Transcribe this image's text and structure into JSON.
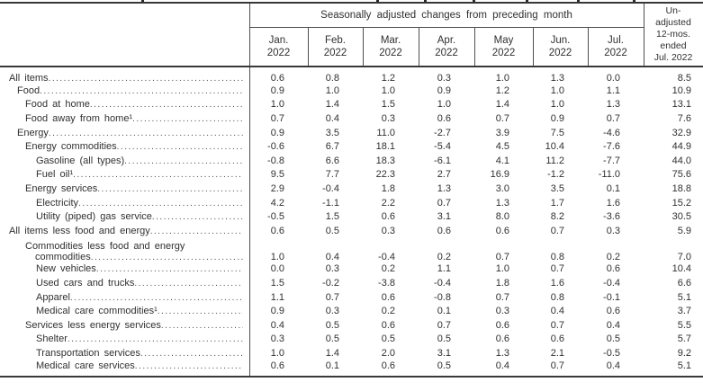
{
  "table": {
    "header": {
      "group_title": "Seasonally adjusted changes from preceding month",
      "months": [
        {
          "abbr": "Jan.",
          "year": "2022"
        },
        {
          "abbr": "Feb.",
          "year": "2022"
        },
        {
          "abbr": "Mar.",
          "year": "2022"
        },
        {
          "abbr": "Apr.",
          "year": "2022"
        },
        {
          "abbr": "May",
          "year": "2022"
        },
        {
          "abbr": "Jun.",
          "year": "2022"
        },
        {
          "abbr": "Jul.",
          "year": "2022"
        }
      ],
      "unadjusted_lines": [
        "Un-",
        "adjusted",
        "12-mos.",
        "ended",
        "Jul. 2022"
      ]
    },
    "rows": [
      {
        "label": "All items",
        "indent": 0,
        "values": [
          "0.6",
          "0.8",
          "1.2",
          "0.3",
          "1.0",
          "1.3",
          "0.0",
          "8.5"
        ]
      },
      {
        "label": "Food",
        "indent": 1,
        "values": [
          "0.9",
          "1.0",
          "1.0",
          "0.9",
          "1.2",
          "1.0",
          "1.1",
          "10.9"
        ]
      },
      {
        "label": "Food at home",
        "indent": 2,
        "values": [
          "1.0",
          "1.4",
          "1.5",
          "1.0",
          "1.4",
          "1.0",
          "1.3",
          "13.1"
        ]
      },
      {
        "label": "Food away from home¹",
        "indent": 2,
        "values": [
          "0.7",
          "0.4",
          "0.3",
          "0.6",
          "0.7",
          "0.9",
          "0.7",
          "7.6"
        ]
      },
      {
        "label": "Energy",
        "indent": 1,
        "values": [
          "0.9",
          "3.5",
          "11.0",
          "-2.7",
          "3.9",
          "7.5",
          "-4.6",
          "32.9"
        ]
      },
      {
        "label": "Energy commodities",
        "indent": 2,
        "values": [
          "-0.6",
          "6.7",
          "18.1",
          "-5.4",
          "4.5",
          "10.4",
          "-7.6",
          "44.9"
        ]
      },
      {
        "label": "Gasoline (all types)",
        "indent": 3,
        "values": [
          "-0.8",
          "6.6",
          "18.3",
          "-6.1",
          "4.1",
          "11.2",
          "-7.7",
          "44.0"
        ]
      },
      {
        "label": "Fuel oil¹",
        "indent": 3,
        "values": [
          "9.5",
          "7.7",
          "22.3",
          "2.7",
          "16.9",
          "-1.2",
          "-11.0",
          "75.6"
        ]
      },
      {
        "label": "Energy services",
        "indent": 2,
        "values": [
          "2.9",
          "-0.4",
          "1.8",
          "1.3",
          "3.0",
          "3.5",
          "0.1",
          "18.8"
        ]
      },
      {
        "label": "Electricity",
        "indent": 3,
        "values": [
          "4.2",
          "-1.1",
          "2.2",
          "0.7",
          "1.3",
          "1.7",
          "1.6",
          "15.2"
        ]
      },
      {
        "label": "Utility (piped) gas service",
        "indent": 3,
        "values": [
          "-0.5",
          "1.5",
          "0.6",
          "3.1",
          "8.0",
          "8.2",
          "-3.6",
          "30.5"
        ]
      },
      {
        "label": "All items less food and energy",
        "indent": 0,
        "values": [
          "0.6",
          "0.5",
          "0.3",
          "0.6",
          "0.6",
          "0.7",
          "0.3",
          "5.9"
        ]
      },
      {
        "label": "Commodities less food and energy",
        "label_line2": "commodities",
        "indent": 2,
        "values": [
          "1.0",
          "0.4",
          "-0.4",
          "0.2",
          "0.7",
          "0.8",
          "0.2",
          "7.0"
        ]
      },
      {
        "label": "New vehicles",
        "indent": 3,
        "values": [
          "0.0",
          "0.3",
          "0.2",
          "1.1",
          "1.0",
          "0.7",
          "0.6",
          "10.4"
        ]
      },
      {
        "label": "Used cars and trucks",
        "indent": 3,
        "values": [
          "1.5",
          "-0.2",
          "-3.8",
          "-0.4",
          "1.8",
          "1.6",
          "-0.4",
          "6.6"
        ]
      },
      {
        "label": "Apparel",
        "indent": 3,
        "values": [
          "1.1",
          "0.7",
          "0.6",
          "-0.8",
          "0.7",
          "0.8",
          "-0.1",
          "5.1"
        ]
      },
      {
        "label": "Medical care commodities¹",
        "indent": 3,
        "values": [
          "0.9",
          "0.3",
          "0.2",
          "0.1",
          "0.3",
          "0.4",
          "0.6",
          "3.7"
        ]
      },
      {
        "label": "Services less energy services",
        "indent": 2,
        "values": [
          "0.4",
          "0.5",
          "0.6",
          "0.7",
          "0.6",
          "0.7",
          "0.4",
          "5.5"
        ]
      },
      {
        "label": "Shelter",
        "indent": 3,
        "values": [
          "0.3",
          "0.5",
          "0.5",
          "0.5",
          "0.6",
          "0.6",
          "0.5",
          "5.7"
        ]
      },
      {
        "label": "Transportation services",
        "indent": 3,
        "values": [
          "1.0",
          "1.4",
          "2.0",
          "3.1",
          "1.3",
          "2.1",
          "-0.5",
          "9.2"
        ]
      },
      {
        "label": "Medical care services",
        "indent": 3,
        "values": [
          "0.6",
          "0.1",
          "0.6",
          "0.5",
          "0.4",
          "0.7",
          "0.4",
          "5.1"
        ]
      }
    ]
  }
}
